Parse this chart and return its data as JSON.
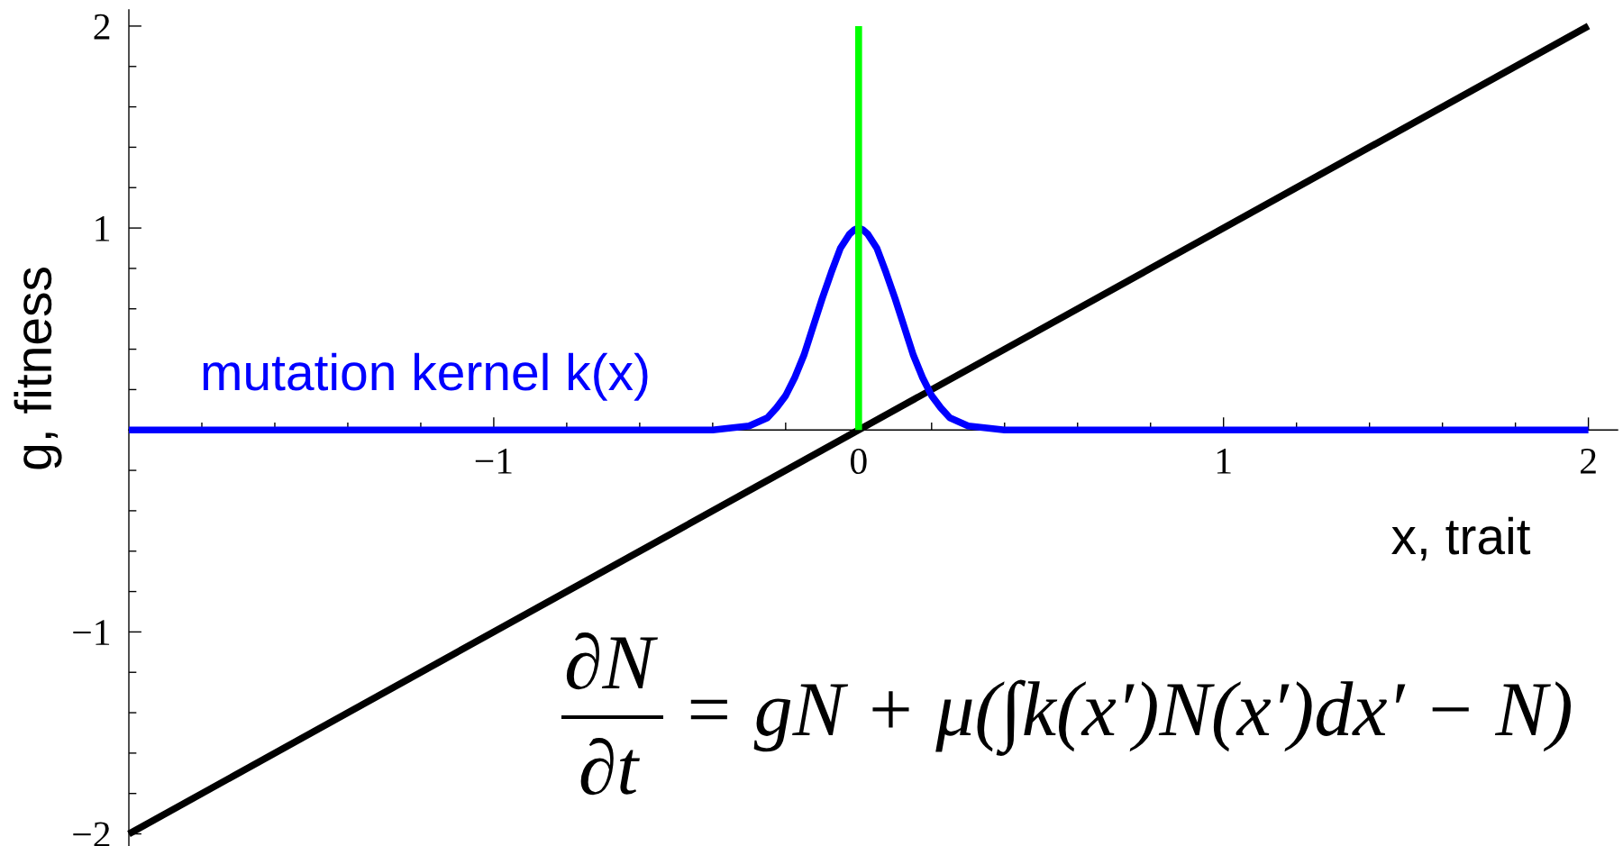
{
  "chart_data": {
    "type": "line",
    "xlabel": "x, trait",
    "ylabel": "g, fitness",
    "annotations": [
      "∂N",
      "∂t",
      "= gN + μ(∫k(x′)N(x′)dx′ − N)"
    ],
    "xlim": [
      -2,
      2.08
    ],
    "ylim": [
      -2.06,
      2.08
    ],
    "xticks": [
      {
        "value": -1.8,
        "label": null
      },
      {
        "value": -1.6,
        "label": null
      },
      {
        "value": -1.4,
        "label": null
      },
      {
        "value": -1.2,
        "label": null
      },
      {
        "value": -1,
        "label": "−1"
      },
      {
        "value": -0.8,
        "label": null
      },
      {
        "value": -0.6,
        "label": null
      },
      {
        "value": -0.4,
        "label": null
      },
      {
        "value": -0.2,
        "label": null
      },
      0,
      {
        "value": 0.2,
        "label": null
      },
      {
        "value": 0.4,
        "label": null
      },
      {
        "value": 0.6,
        "label": null
      },
      {
        "value": 0.8,
        "label": null
      },
      1,
      {
        "value": 1.2,
        "label": null
      },
      {
        "value": 1.4,
        "label": null
      },
      {
        "value": 1.6,
        "label": null
      },
      {
        "value": 1.8,
        "label": null
      },
      2
    ],
    "yticks": [
      {
        "value": -2,
        "label": "−2"
      },
      {
        "value": -1.8,
        "label": null
      },
      {
        "value": -1.6,
        "label": null
      },
      {
        "value": -1.4,
        "label": null
      },
      {
        "value": -1.2,
        "label": null
      },
      {
        "value": -1,
        "label": "−1"
      },
      {
        "value": -0.8,
        "label": null
      },
      {
        "value": -0.6,
        "label": null
      },
      {
        "value": -0.4,
        "label": null
      },
      {
        "value": -0.2,
        "label": null
      },
      {
        "value": 0.2,
        "label": null
      },
      {
        "value": 0.4,
        "label": null
      },
      {
        "value": 0.6,
        "label": null
      },
      {
        "value": 0.8,
        "label": null
      },
      1,
      {
        "value": 1.2,
        "label": null
      },
      {
        "value": 1.4,
        "label": null
      },
      {
        "value": 1.6,
        "label": null
      },
      {
        "value": 1.8,
        "label": null
      },
      2
    ],
    "grid": false,
    "legend": false,
    "series": [
      {
        "color": "#000000",
        "x": [
          -2,
          2
        ],
        "values": [
          -2,
          2
        ]
      },
      {
        "name": "mutation kernel k(x)",
        "color": "#0000ff",
        "x": [
          -2,
          -0.5,
          -0.4,
          -0.35,
          -0.3,
          -0.275,
          -0.25,
          -0.225,
          -0.2,
          -0.175,
          -0.15,
          -0.125,
          -0.1,
          -0.075,
          -0.05,
          -0.025,
          -0.0125,
          0,
          0.0125,
          0.025,
          0.05,
          0.075,
          0.1,
          0.125,
          0.15,
          0.175,
          0.2,
          0.225,
          0.25,
          0.275,
          0.3,
          0.35,
          0.4,
          0.5,
          2
        ],
        "values": [
          0,
          0,
          0,
          0.01,
          0.02,
          0.04,
          0.06,
          0.11,
          0.17,
          0.26,
          0.37,
          0.51,
          0.65,
          0.78,
          0.9,
          0.97,
          0.99,
          1,
          0.99,
          0.97,
          0.9,
          0.78,
          0.65,
          0.51,
          0.37,
          0.26,
          0.17,
          0.11,
          0.06,
          0.04,
          0.02,
          0.01,
          0,
          0,
          0
        ]
      },
      {
        "color": "#00ff00",
        "x": [
          0,
          0
        ],
        "values": [
          0,
          2
        ]
      }
    ]
  }
}
